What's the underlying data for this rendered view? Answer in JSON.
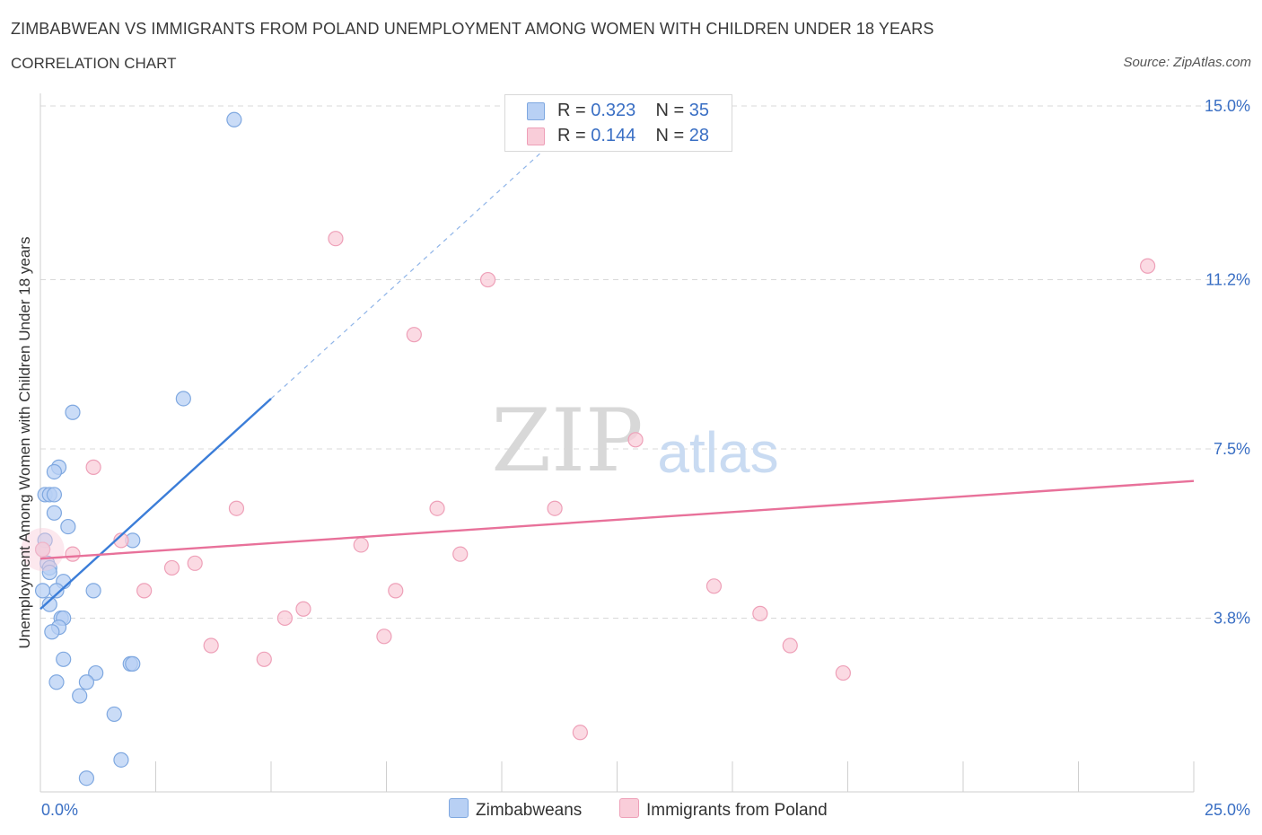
{
  "header": {
    "title": "ZIMBABWEAN VS IMMIGRANTS FROM POLAND UNEMPLOYMENT AMONG WOMEN WITH CHILDREN UNDER 18 YEARS",
    "subtitle": "CORRELATION CHART",
    "source": "Source: ZipAtlas.com"
  },
  "watermark": {
    "zip": "ZIP",
    "atlas": "atlas"
  },
  "legend": {
    "rows": [
      {
        "r_label": "R = ",
        "r_value": "0.323",
        "n_label": "N = ",
        "n_value": "35"
      },
      {
        "r_label": "R = ",
        "r_value": "0.144",
        "n_label": "N = ",
        "n_value": "28"
      }
    ]
  },
  "bottom_legend": {
    "zimbabweans": "Zimbabweans",
    "poland": "Immigrants from Poland"
  },
  "colors": {
    "blue_fill": "#b8d0f4",
    "blue_stroke": "#7fa8e0",
    "blue_line": "#3b7dd8",
    "pink_fill": "#f9cdd9",
    "pink_stroke": "#eea0b8",
    "pink_line": "#e8719a",
    "grid": "#d9d9d9",
    "tick_text": "#3a6fc4"
  },
  "chart_data": {
    "type": "scatter",
    "title": "ZIMBABWEAN VS IMMIGRANTS FROM POLAND UNEMPLOYMENT AMONG WOMEN WITH CHILDREN UNDER 18 YEARS",
    "xlabel": "",
    "ylabel": "Unemployment Among Women with Children Under 18 years",
    "xlim": [
      0,
      25
    ],
    "ylim": [
      0,
      15
    ],
    "x_tick_labels": [
      "0.0%",
      "25.0%"
    ],
    "y_ticks": [
      3.8,
      7.5,
      11.2,
      15.0
    ],
    "y_tick_labels": [
      "3.8%",
      "7.5%",
      "11.2%",
      "15.0%"
    ],
    "grid": true,
    "legend_position": "top-center",
    "series": [
      {
        "name": "Zimbabweans",
        "color": "#b8d0f4",
        "points": [
          {
            "x": 4.2,
            "y": 14.7
          },
          {
            "x": 3.1,
            "y": 8.6
          },
          {
            "x": 0.7,
            "y": 8.3
          },
          {
            "x": 0.4,
            "y": 7.1
          },
          {
            "x": 0.3,
            "y": 7.0
          },
          {
            "x": 0.1,
            "y": 6.5
          },
          {
            "x": 0.2,
            "y": 6.5
          },
          {
            "x": 0.3,
            "y": 6.5
          },
          {
            "x": 0.3,
            "y": 6.1
          },
          {
            "x": 0.6,
            "y": 5.8
          },
          {
            "x": 0.1,
            "y": 5.5
          },
          {
            "x": 2.0,
            "y": 5.5
          },
          {
            "x": 0.05,
            "y": 5.3
          },
          {
            "x": 0.15,
            "y": 5.0
          },
          {
            "x": 0.2,
            "y": 4.9
          },
          {
            "x": 0.2,
            "y": 4.8
          },
          {
            "x": 0.5,
            "y": 4.6
          },
          {
            "x": 0.35,
            "y": 4.4
          },
          {
            "x": 0.05,
            "y": 4.4
          },
          {
            "x": 1.15,
            "y": 4.4
          },
          {
            "x": 0.2,
            "y": 4.1
          },
          {
            "x": 0.45,
            "y": 3.8
          },
          {
            "x": 0.5,
            "y": 3.8
          },
          {
            "x": 0.4,
            "y": 3.6
          },
          {
            "x": 0.25,
            "y": 3.5
          },
          {
            "x": 0.5,
            "y": 2.9
          },
          {
            "x": 1.95,
            "y": 2.8
          },
          {
            "x": 2.0,
            "y": 2.8
          },
          {
            "x": 1.2,
            "y": 2.6
          },
          {
            "x": 1.0,
            "y": 2.4
          },
          {
            "x": 0.35,
            "y": 2.4
          },
          {
            "x": 0.85,
            "y": 2.1
          },
          {
            "x": 1.6,
            "y": 1.7
          },
          {
            "x": 1.75,
            "y": 0.7
          },
          {
            "x": 1.0,
            "y": 0.3
          }
        ],
        "trend": {
          "x": [
            0.0,
            5.0
          ],
          "y": [
            4.0,
            8.6
          ]
        },
        "trend_extension": {
          "x": [
            5.0,
            11.2
          ],
          "y": [
            8.6,
            14.3
          ]
        }
      },
      {
        "name": "Immigrants from Poland",
        "color": "#f9cdd9",
        "points": [
          {
            "x": 0.05,
            "y": 5.3
          },
          {
            "x": 6.4,
            "y": 12.1
          },
          {
            "x": 9.7,
            "y": 11.2
          },
          {
            "x": 24.0,
            "y": 11.5
          },
          {
            "x": 8.1,
            "y": 10.0
          },
          {
            "x": 12.9,
            "y": 7.7
          },
          {
            "x": 1.15,
            "y": 7.1
          },
          {
            "x": 4.25,
            "y": 6.2
          },
          {
            "x": 8.6,
            "y": 6.2
          },
          {
            "x": 11.15,
            "y": 6.2
          },
          {
            "x": 1.75,
            "y": 5.5
          },
          {
            "x": 0.7,
            "y": 5.2
          },
          {
            "x": 6.95,
            "y": 5.4
          },
          {
            "x": 9.1,
            "y": 5.2
          },
          {
            "x": 3.35,
            "y": 5.0
          },
          {
            "x": 2.85,
            "y": 4.9
          },
          {
            "x": 2.25,
            "y": 4.4
          },
          {
            "x": 7.7,
            "y": 4.4
          },
          {
            "x": 14.6,
            "y": 4.5
          },
          {
            "x": 5.7,
            "y": 4.0
          },
          {
            "x": 5.3,
            "y": 3.8
          },
          {
            "x": 15.6,
            "y": 3.9
          },
          {
            "x": 7.45,
            "y": 3.4
          },
          {
            "x": 3.7,
            "y": 3.2
          },
          {
            "x": 16.25,
            "y": 3.2
          },
          {
            "x": 4.85,
            "y": 2.9
          },
          {
            "x": 17.4,
            "y": 2.6
          },
          {
            "x": 11.7,
            "y": 1.3
          }
        ],
        "trend": {
          "x": [
            0.0,
            25.0
          ],
          "y": [
            5.1,
            6.8
          ]
        }
      }
    ]
  }
}
